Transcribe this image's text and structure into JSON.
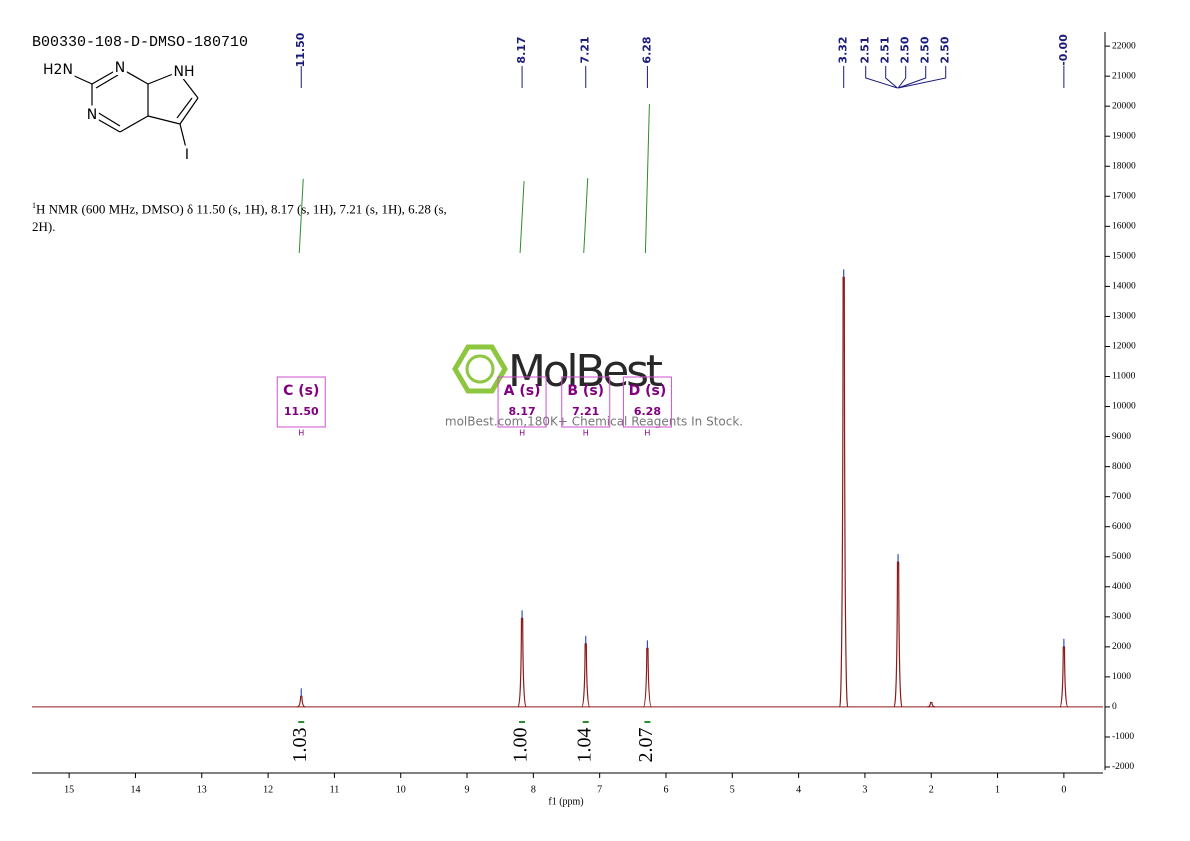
{
  "chart_data": {
    "type": "spectrum",
    "title": "B00330-108-D-DMSO-180710",
    "molecule": {
      "atoms": [
        "H2N",
        "N",
        "NH",
        "N",
        "I"
      ]
    },
    "description": {
      "sup": "1",
      "text": "H NMR (600 MHz, DMSO) δ 11.50 (s, 1H), 8.17 (s, 1H), 7.21 (s, 1H), 6.28 (s, 2H)."
    },
    "xlabel": "f1 (ppm)",
    "xlim": [
      15.56,
      -0.59
    ],
    "xticks": [
      15,
      14,
      13,
      12,
      11,
      10,
      9,
      8,
      7,
      6,
      5,
      4,
      3,
      2,
      1,
      0
    ],
    "ylim": [
      -2100,
      22470
    ],
    "yticks": [
      -2000,
      -1000,
      0,
      1000,
      2000,
      3000,
      4000,
      5000,
      6000,
      7000,
      8000,
      9000,
      10000,
      11000,
      12000,
      13000,
      14000,
      15000,
      16000,
      17000,
      18000,
      19000,
      20000,
      21000,
      22000
    ],
    "series": [
      {
        "name": "1H",
        "color": "#8b1a1a",
        "x": [
          11.5,
          8.17,
          7.21,
          6.28,
          3.32,
          2.5,
          2.0,
          0.0
        ],
        "values": [
          350,
          2950,
          2100,
          1950,
          14300,
          4820,
          150,
          2000
        ]
      }
    ],
    "peak_labels": [
      {
        "value": 11.5,
        "label": "11.50"
      },
      {
        "value": 8.17,
        "label": "8.17"
      },
      7.21,
      6.28,
      3.32,
      2.51,
      2.51,
      {
        "value": 2.5,
        "label": "2.50"
      },
      {
        "value": 2.5,
        "label": "2.50"
      },
      {
        "value": 2.5,
        "label": "2.50"
      },
      {
        "value": 0,
        "label": "-0.00"
      }
    ],
    "integrals": {
      "values": [
        1.03,
        {
          "value": 1,
          "label": "1.00"
        },
        1.04,
        2.07
      ]
    },
    "multiplets": [
      {
        "label": "C (s)",
        "shift": {
          "value": 11.5,
          "label": "11.50"
        },
        "atom": "H"
      },
      {
        "label": "A (s)",
        "shift": 8.17,
        "atom": "H"
      },
      {
        "label": "B (s)",
        "shift": 7.21,
        "atom": "H"
      },
      {
        "label": "D (s)",
        "shift": 6.28,
        "atom": "H"
      }
    ],
    "watermark": {
      "brand": "MolBest",
      "tagline": "molBest.com,180K+ Chemical Reagents In Stock."
    }
  }
}
